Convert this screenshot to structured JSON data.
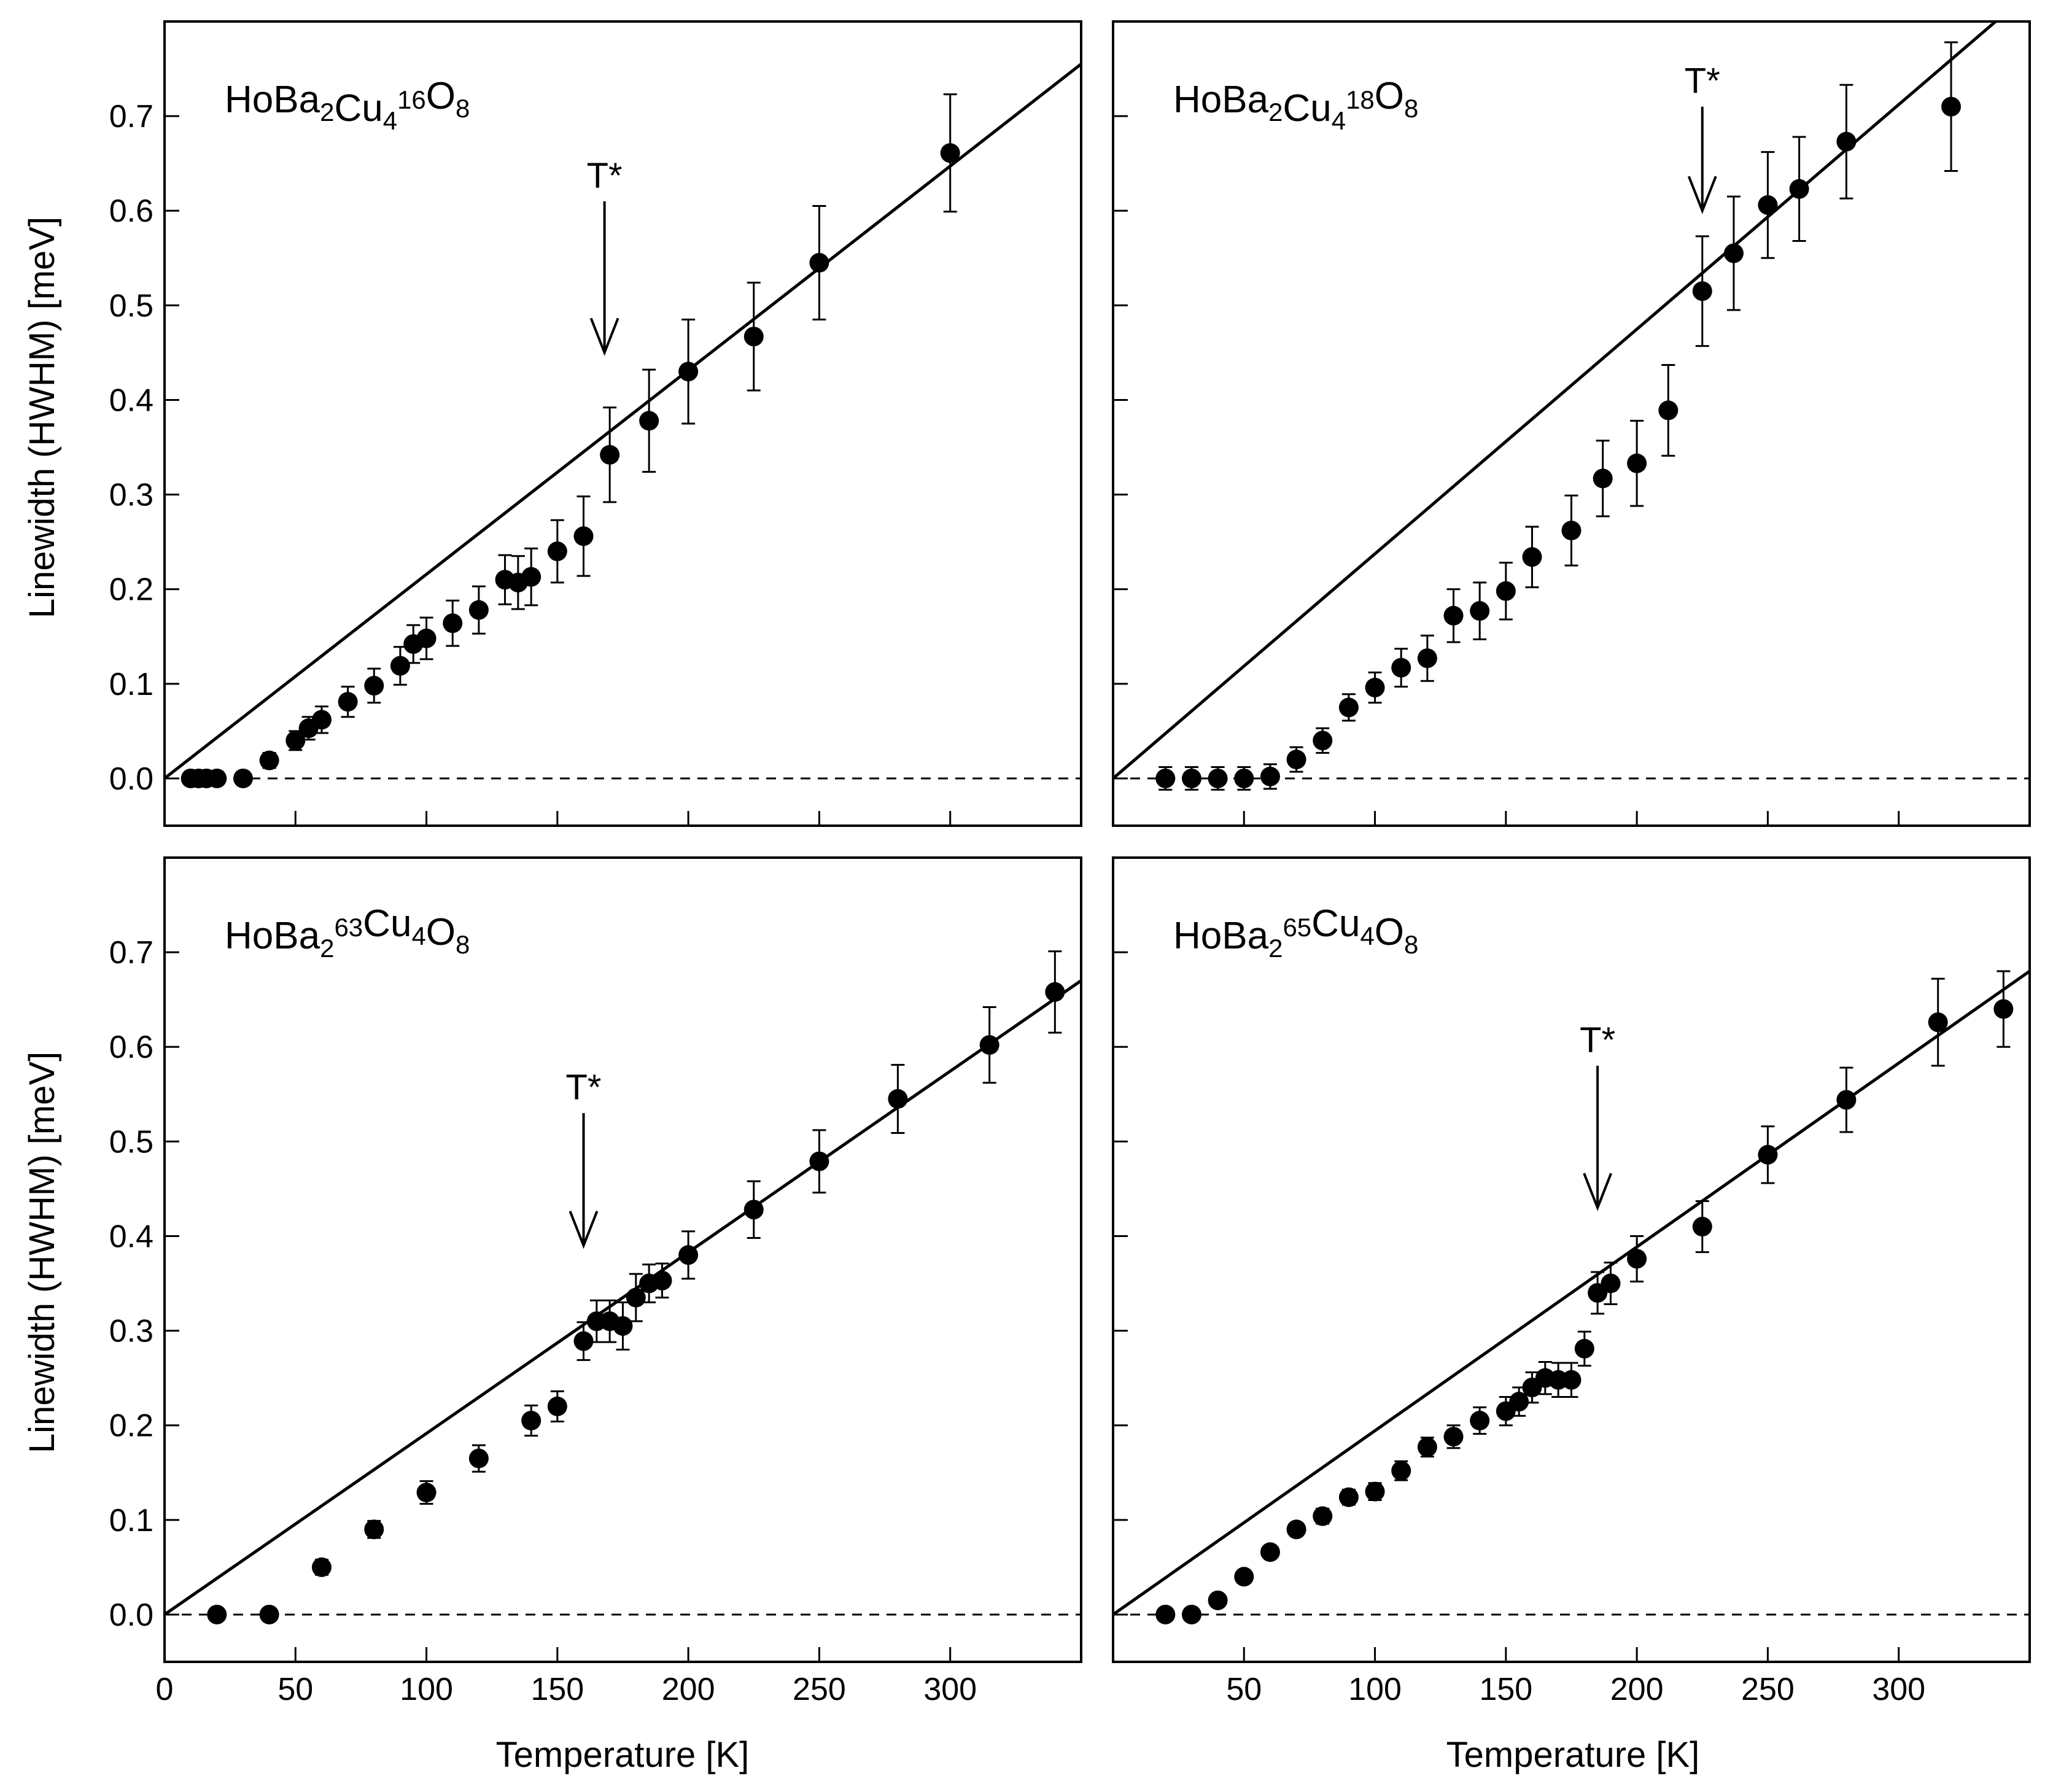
{
  "chart_data": [
    {
      "type": "scatter",
      "label": {
        "parts": [
          {
            "t": "HoBa"
          },
          {
            "t": "2",
            "sub": true
          },
          {
            "t": "Cu"
          },
          {
            "t": "4",
            "sub": true
          },
          {
            "t": "16",
            "sup": true
          },
          {
            "t": "O"
          },
          {
            "t": "8",
            "sub": true
          }
        ]
      },
      "label_text": "HoBa2Cu4 16O8",
      "xlabel": "Temperature [K]",
      "ylabel": "Linewidth (HWHM) [meV]",
      "xlim": [
        0,
        350
      ],
      "ylim": [
        -0.05,
        0.8
      ],
      "xticks": [
        0,
        50,
        100,
        150,
        200,
        250,
        300
      ],
      "yticks": [
        0.0,
        0.1,
        0.2,
        0.3,
        0.4,
        0.5,
        0.6,
        0.7
      ],
      "fit_line": {
        "x": [
          0,
          350
        ],
        "y": [
          0,
          0.755
        ]
      },
      "baseline": 0,
      "tstar": {
        "text": "T*",
        "x": 168,
        "y_top": 0.61,
        "y_tip": 0.45
      },
      "points": [
        {
          "x": 10,
          "y": 0.0,
          "err": 0.007
        },
        {
          "x": 13,
          "y": 0.0,
          "err": 0.007
        },
        {
          "x": 16,
          "y": 0.0,
          "err": 0.007
        },
        {
          "x": 20,
          "y": 0.0,
          "err": 0.007
        },
        {
          "x": 30,
          "y": 0.0,
          "err": 0.007
        },
        {
          "x": 40,
          "y": 0.019,
          "err": 0.008
        },
        {
          "x": 50,
          "y": 0.04,
          "err": 0.01
        },
        {
          "x": 55,
          "y": 0.053,
          "err": 0.012
        },
        {
          "x": 60,
          "y": 0.062,
          "err": 0.014
        },
        {
          "x": 70,
          "y": 0.081,
          "err": 0.016
        },
        {
          "x": 80,
          "y": 0.098,
          "err": 0.018
        },
        {
          "x": 90,
          "y": 0.119,
          "err": 0.02
        },
        {
          "x": 95,
          "y": 0.142,
          "err": 0.02
        },
        {
          "x": 100,
          "y": 0.148,
          "err": 0.022
        },
        {
          "x": 110,
          "y": 0.164,
          "err": 0.024
        },
        {
          "x": 120,
          "y": 0.178,
          "err": 0.025
        },
        {
          "x": 130,
          "y": 0.21,
          "err": 0.026
        },
        {
          "x": 135,
          "y": 0.207,
          "err": 0.028
        },
        {
          "x": 140,
          "y": 0.213,
          "err": 0.03
        },
        {
          "x": 150,
          "y": 0.24,
          "err": 0.033
        },
        {
          "x": 160,
          "y": 0.256,
          "err": 0.042
        },
        {
          "x": 170,
          "y": 0.342,
          "err": 0.05
        },
        {
          "x": 185,
          "y": 0.378,
          "err": 0.054
        },
        {
          "x": 200,
          "y": 0.43,
          "err": 0.055
        },
        {
          "x": 225,
          "y": 0.467,
          "err": 0.057
        },
        {
          "x": 250,
          "y": 0.545,
          "err": 0.06
        },
        {
          "x": 300,
          "y": 0.661,
          "err": 0.062
        }
      ]
    },
    {
      "type": "scatter",
      "label": {
        "parts": [
          {
            "t": "HoBa"
          },
          {
            "t": "2",
            "sub": true
          },
          {
            "t": "Cu"
          },
          {
            "t": "4",
            "sub": true
          },
          {
            "t": "18",
            "sup": true
          },
          {
            "t": "O"
          },
          {
            "t": "8",
            "sub": true
          }
        ]
      },
      "label_text": "HoBa2Cu4 18O8",
      "xlabel": "Temperature [K]",
      "ylabel": "Linewidth (HWHM) [meV]",
      "xlim": [
        0,
        350
      ],
      "ylim": [
        -0.05,
        0.8
      ],
      "xticks": [
        50,
        100,
        150,
        200,
        250,
        300
      ],
      "yticks": [
        0.0,
        0.1,
        0.2,
        0.3,
        0.4,
        0.5,
        0.6,
        0.7
      ],
      "fit_line": {
        "x": [
          0,
          337
        ],
        "y": [
          0,
          0.8
        ]
      },
      "baseline": 0,
      "tstar": {
        "text": "T*",
        "x": 225,
        "y_top": 0.71,
        "y_tip": 0.6
      },
      "points": [
        {
          "x": 20,
          "y": 0.0,
          "err": 0.012
        },
        {
          "x": 30,
          "y": 0.0,
          "err": 0.012
        },
        {
          "x": 40,
          "y": 0.0,
          "err": 0.012
        },
        {
          "x": 50,
          "y": 0.0,
          "err": 0.012
        },
        {
          "x": 60,
          "y": 0.002,
          "err": 0.013
        },
        {
          "x": 70,
          "y": 0.02,
          "err": 0.013
        },
        {
          "x": 80,
          "y": 0.04,
          "err": 0.013
        },
        {
          "x": 90,
          "y": 0.075,
          "err": 0.014
        },
        {
          "x": 100,
          "y": 0.096,
          "err": 0.016
        },
        {
          "x": 110,
          "y": 0.117,
          "err": 0.02
        },
        {
          "x": 120,
          "y": 0.127,
          "err": 0.024
        },
        {
          "x": 130,
          "y": 0.172,
          "err": 0.028
        },
        {
          "x": 140,
          "y": 0.177,
          "err": 0.03
        },
        {
          "x": 150,
          "y": 0.198,
          "err": 0.03
        },
        {
          "x": 160,
          "y": 0.234,
          "err": 0.032
        },
        {
          "x": 175,
          "y": 0.262,
          "err": 0.037
        },
        {
          "x": 187,
          "y": 0.317,
          "err": 0.04
        },
        {
          "x": 200,
          "y": 0.333,
          "err": 0.045
        },
        {
          "x": 212,
          "y": 0.389,
          "err": 0.048
        },
        {
          "x": 225,
          "y": 0.515,
          "err": 0.058
        },
        {
          "x": 237,
          "y": 0.555,
          "err": 0.06
        },
        {
          "x": 250,
          "y": 0.606,
          "err": 0.056
        },
        {
          "x": 262,
          "y": 0.623,
          "err": 0.055
        },
        {
          "x": 280,
          "y": 0.673,
          "err": 0.06
        },
        {
          "x": 320,
          "y": 0.71,
          "err": 0.068
        }
      ]
    },
    {
      "type": "scatter",
      "label": {
        "parts": [
          {
            "t": "HoBa"
          },
          {
            "t": "2",
            "sub": true
          },
          {
            "t": "63",
            "sup": true
          },
          {
            "t": "Cu"
          },
          {
            "t": "4",
            "sub": true
          },
          {
            "t": "O"
          },
          {
            "t": "8",
            "sub": true
          }
        ]
      },
      "label_text": "HoBa2 63Cu4O8",
      "xlabel": "Temperature [K]",
      "ylabel": "Linewidth (HWHM) [meV]",
      "xlim": [
        0,
        350
      ],
      "ylim": [
        -0.05,
        0.8
      ],
      "xticks": [
        0,
        50,
        100,
        150,
        200,
        250,
        300
      ],
      "yticks": [
        0.0,
        0.1,
        0.2,
        0.3,
        0.4,
        0.5,
        0.6,
        0.7
      ],
      "fit_line": {
        "x": [
          0,
          350
        ],
        "y": [
          0,
          0.67
        ]
      },
      "baseline": 0,
      "tstar": {
        "text": "T*",
        "x": 160,
        "y_top": 0.53,
        "y_tip": 0.39
      },
      "points": [
        {
          "x": 20,
          "y": 0.0,
          "err": 0.006
        },
        {
          "x": 40,
          "y": 0.0,
          "err": 0.006
        },
        {
          "x": 60,
          "y": 0.05,
          "err": 0.008
        },
        {
          "x": 80,
          "y": 0.09,
          "err": 0.009
        },
        {
          "x": 100,
          "y": 0.129,
          "err": 0.012
        },
        {
          "x": 120,
          "y": 0.165,
          "err": 0.014
        },
        {
          "x": 140,
          "y": 0.205,
          "err": 0.016
        },
        {
          "x": 150,
          "y": 0.22,
          "err": 0.016
        },
        {
          "x": 160,
          "y": 0.289,
          "err": 0.02
        },
        {
          "x": 165,
          "y": 0.31,
          "err": 0.022
        },
        {
          "x": 170,
          "y": 0.31,
          "err": 0.022
        },
        {
          "x": 175,
          "y": 0.305,
          "err": 0.025
        },
        {
          "x": 180,
          "y": 0.335,
          "err": 0.025
        },
        {
          "x": 185,
          "y": 0.35,
          "err": 0.02
        },
        {
          "x": 190,
          "y": 0.353,
          "err": 0.018
        },
        {
          "x": 200,
          "y": 0.38,
          "err": 0.025
        },
        {
          "x": 225,
          "y": 0.428,
          "err": 0.03
        },
        {
          "x": 250,
          "y": 0.479,
          "err": 0.033
        },
        {
          "x": 280,
          "y": 0.545,
          "err": 0.036
        },
        {
          "x": 315,
          "y": 0.602,
          "err": 0.04
        },
        {
          "x": 340,
          "y": 0.658,
          "err": 0.043
        }
      ]
    },
    {
      "type": "scatter",
      "label": {
        "parts": [
          {
            "t": "HoBa"
          },
          {
            "t": "2",
            "sub": true
          },
          {
            "t": "65",
            "sup": true
          },
          {
            "t": "Cu"
          },
          {
            "t": "4",
            "sub": true
          },
          {
            "t": "O"
          },
          {
            "t": "8",
            "sub": true
          }
        ]
      },
      "label_text": "HoBa2 65Cu4O8",
      "xlabel": "Temperature [K]",
      "ylabel": "Linewidth (HWHM) [meV]",
      "xlim": [
        0,
        350
      ],
      "ylim": [
        -0.05,
        0.8
      ],
      "xticks": [
        50,
        100,
        150,
        200,
        250,
        300
      ],
      "yticks": [
        0.0,
        0.1,
        0.2,
        0.3,
        0.4,
        0.5,
        0.6,
        0.7
      ],
      "fit_line": {
        "x": [
          0,
          350
        ],
        "y": [
          0,
          0.68
        ]
      },
      "baseline": 0,
      "tstar": {
        "text": "T*",
        "x": 185,
        "y_top": 0.58,
        "y_tip": 0.43
      },
      "points": [
        {
          "x": 20,
          "y": 0.0,
          "err": 0.005
        },
        {
          "x": 30,
          "y": 0.0,
          "err": 0.005
        },
        {
          "x": 40,
          "y": 0.015,
          "err": 0.006
        },
        {
          "x": 50,
          "y": 0.04,
          "err": 0.006
        },
        {
          "x": 60,
          "y": 0.066,
          "err": 0.006
        },
        {
          "x": 70,
          "y": 0.09,
          "err": 0.007
        },
        {
          "x": 80,
          "y": 0.104,
          "err": 0.008
        },
        {
          "x": 90,
          "y": 0.124,
          "err": 0.008
        },
        {
          "x": 100,
          "y": 0.13,
          "err": 0.009
        },
        {
          "x": 110,
          "y": 0.152,
          "err": 0.01
        },
        {
          "x": 120,
          "y": 0.177,
          "err": 0.01
        },
        {
          "x": 130,
          "y": 0.188,
          "err": 0.012
        },
        {
          "x": 140,
          "y": 0.205,
          "err": 0.014
        },
        {
          "x": 150,
          "y": 0.215,
          "err": 0.015
        },
        {
          "x": 155,
          "y": 0.225,
          "err": 0.015
        },
        {
          "x": 160,
          "y": 0.24,
          "err": 0.016
        },
        {
          "x": 165,
          "y": 0.25,
          "err": 0.017
        },
        {
          "x": 170,
          "y": 0.248,
          "err": 0.018
        },
        {
          "x": 175,
          "y": 0.248,
          "err": 0.018
        },
        {
          "x": 180,
          "y": 0.281,
          "err": 0.018
        },
        {
          "x": 185,
          "y": 0.34,
          "err": 0.022
        },
        {
          "x": 190,
          "y": 0.35,
          "err": 0.022
        },
        {
          "x": 200,
          "y": 0.376,
          "err": 0.024
        },
        {
          "x": 225,
          "y": 0.41,
          "err": 0.027
        },
        {
          "x": 250,
          "y": 0.486,
          "err": 0.03
        },
        {
          "x": 280,
          "y": 0.544,
          "err": 0.034
        },
        {
          "x": 315,
          "y": 0.626,
          "err": 0.046
        },
        {
          "x": 340,
          "y": 0.64,
          "err": 0.04
        }
      ]
    }
  ]
}
